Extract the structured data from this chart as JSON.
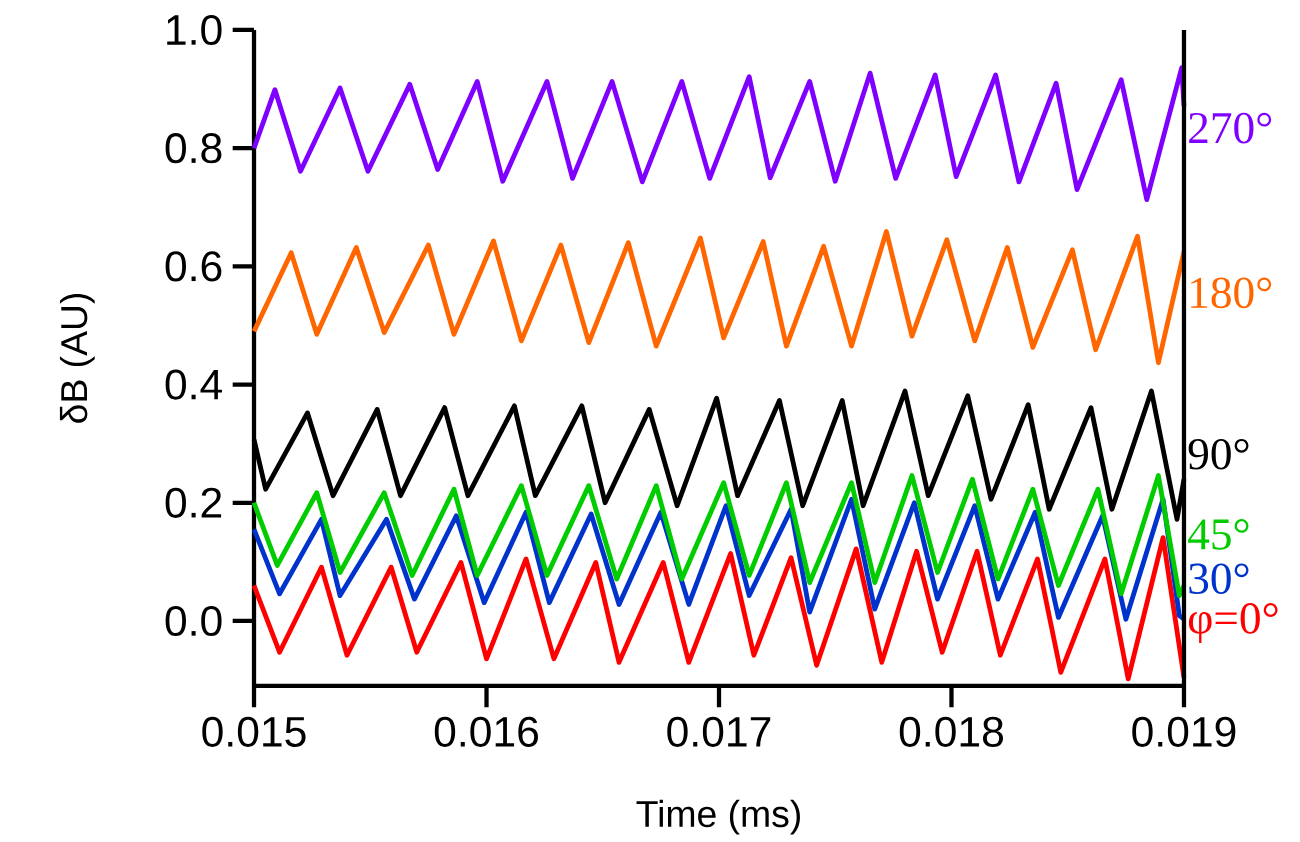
{
  "chart_data": {
    "type": "line",
    "xlabel": "Time (ms)",
    "ylabel": "δB (AU)",
    "xlim": [
      0.015,
      0.019
    ],
    "ylim": [
      -0.11,
      1.0
    ],
    "xticks": [
      0.015,
      0.016,
      0.017,
      0.018,
      0.019
    ],
    "yticks": [
      {
        "value": 0,
        "label": "0.0"
      },
      {
        "value": 0.2,
        "label": "0.2"
      },
      {
        "value": 0.4,
        "label": "0.4"
      },
      {
        "value": 0.6,
        "label": "0.6"
      },
      {
        "value": 0.8,
        "label": "0.8"
      },
      {
        "value": 1.0,
        "label": "1.0"
      }
    ],
    "series": [
      {
        "name": "φ=0°",
        "color": "#ff0000",
        "x": [
          0.015,
          0.01511,
          0.01529,
          0.0154,
          0.01559,
          0.0157,
          0.01589,
          0.016,
          0.01617,
          0.01629,
          0.01647,
          0.01657,
          0.01676,
          0.01687,
          0.01705,
          0.01715,
          0.01731,
          0.01742,
          0.01759,
          0.0177,
          0.01785,
          0.01796,
          0.01811,
          0.01821,
          0.01837,
          0.01847,
          0.01866,
          0.01876,
          0.01891,
          0.019
        ],
        "values": [
          0.06,
          -0.053,
          0.091,
          -0.058,
          0.091,
          -0.053,
          0.099,
          -0.064,
          0.105,
          -0.064,
          0.099,
          -0.07,
          0.099,
          -0.07,
          0.114,
          -0.058,
          0.107,
          -0.075,
          0.122,
          -0.07,
          0.118,
          -0.053,
          0.118,
          -0.058,
          0.105,
          -0.087,
          0.105,
          -0.098,
          0.141,
          -0.096
        ]
      },
      {
        "name": "30°",
        "color": "#0033cc",
        "x": [
          0.015,
          0.01511,
          0.01529,
          0.01537,
          0.01557,
          0.01569,
          0.01587,
          0.01599,
          0.01617,
          0.01627,
          0.01645,
          0.01657,
          0.01675,
          0.01687,
          0.01703,
          0.01713,
          0.01731,
          0.01739,
          0.01757,
          0.01767,
          0.01784,
          0.01794,
          0.0181,
          0.0182,
          0.01836,
          0.01846,
          0.01865,
          0.01875,
          0.01891,
          0.01898,
          0.019
        ],
        "values": [
          0.155,
          0.046,
          0.172,
          0.043,
          0.172,
          0.037,
          0.178,
          0.031,
          0.184,
          0.031,
          0.181,
          0.028,
          0.184,
          0.028,
          0.195,
          0.043,
          0.189,
          0.015,
          0.206,
          0.02,
          0.2,
          0.037,
          0.195,
          0.037,
          0.184,
          0.006,
          0.178,
          0.003,
          0.206,
          0.009,
          0.003
        ]
      },
      {
        "name": "45°",
        "color": "#00cc00",
        "x": [
          0.015,
          0.0151,
          0.01527,
          0.01537,
          0.01556,
          0.01568,
          0.01586,
          0.01596,
          0.01615,
          0.01626,
          0.01644,
          0.01656,
          0.01673,
          0.01684,
          0.01702,
          0.01713,
          0.01729,
          0.01739,
          0.01757,
          0.01767,
          0.01783,
          0.01794,
          0.01809,
          0.0182,
          0.01835,
          0.01846,
          0.01863,
          0.01873,
          0.01889,
          0.01898,
          0.019
        ],
        "values": [
          0.2,
          0.094,
          0.217,
          0.082,
          0.217,
          0.077,
          0.223,
          0.077,
          0.229,
          0.077,
          0.229,
          0.071,
          0.229,
          0.071,
          0.234,
          0.077,
          0.234,
          0.065,
          0.234,
          0.065,
          0.246,
          0.082,
          0.24,
          0.071,
          0.223,
          0.06,
          0.223,
          0.046,
          0.246,
          0.043,
          0.06
        ]
      },
      {
        "name": "90°",
        "color": "#000000",
        "x": [
          0.015,
          0.01505,
          0.01523,
          0.01534,
          0.01553,
          0.01563,
          0.01582,
          0.01592,
          0.01612,
          0.01621,
          0.01641,
          0.01651,
          0.0167,
          0.01682,
          0.01699,
          0.01708,
          0.01726,
          0.01736,
          0.01753,
          0.01762,
          0.0178,
          0.0179,
          0.01807,
          0.01817,
          0.01833,
          0.01842,
          0.0186,
          0.01869,
          0.01886,
          0.01897,
          0.019
        ],
        "values": [
          0.307,
          0.223,
          0.352,
          0.212,
          0.358,
          0.212,
          0.361,
          0.212,
          0.364,
          0.212,
          0.364,
          0.2,
          0.358,
          0.195,
          0.377,
          0.212,
          0.373,
          0.195,
          0.373,
          0.195,
          0.389,
          0.212,
          0.381,
          0.206,
          0.366,
          0.189,
          0.361,
          0.189,
          0.389,
          0.172,
          0.24
        ]
      },
      {
        "name": "180°",
        "color": "#ff6600",
        "x": [
          0.015,
          0.01516,
          0.01527,
          0.01544,
          0.01556,
          0.01575,
          0.01586,
          0.01603,
          0.01615,
          0.01632,
          0.01644,
          0.01661,
          0.01673,
          0.01692,
          0.01702,
          0.01719,
          0.01729,
          0.01745,
          0.01757,
          0.01772,
          0.01783,
          0.01798,
          0.0181,
          0.01824,
          0.01835,
          0.01852,
          0.01862,
          0.0188,
          0.01889,
          0.019
        ],
        "values": [
          0.49,
          0.623,
          0.485,
          0.632,
          0.488,
          0.636,
          0.485,
          0.643,
          0.474,
          0.636,
          0.471,
          0.64,
          0.465,
          0.648,
          0.479,
          0.642,
          0.465,
          0.634,
          0.465,
          0.659,
          0.482,
          0.645,
          0.474,
          0.632,
          0.463,
          0.628,
          0.459,
          0.651,
          0.437,
          0.625
        ]
      },
      {
        "name": "270°",
        "color": "#8000ff",
        "x": [
          0.015,
          0.01509,
          0.0152,
          0.01537,
          0.01549,
          0.01567,
          0.01579,
          0.01596,
          0.01607,
          0.01626,
          0.01637,
          0.01654,
          0.01667,
          0.01684,
          0.01696,
          0.01713,
          0.01722,
          0.01739,
          0.0175,
          0.01765,
          0.01776,
          0.01793,
          0.01802,
          0.01819,
          0.01829,
          0.01845,
          0.01854,
          0.01873,
          0.01884,
          0.01899,
          0.019
        ],
        "values": [
          0.8,
          0.899,
          0.761,
          0.902,
          0.761,
          0.908,
          0.764,
          0.913,
          0.744,
          0.913,
          0.749,
          0.913,
          0.743,
          0.913,
          0.749,
          0.921,
          0.75,
          0.913,
          0.744,
          0.927,
          0.749,
          0.924,
          0.752,
          0.924,
          0.743,
          0.91,
          0.73,
          0.916,
          0.713,
          0.936,
          0.871
        ]
      }
    ]
  }
}
